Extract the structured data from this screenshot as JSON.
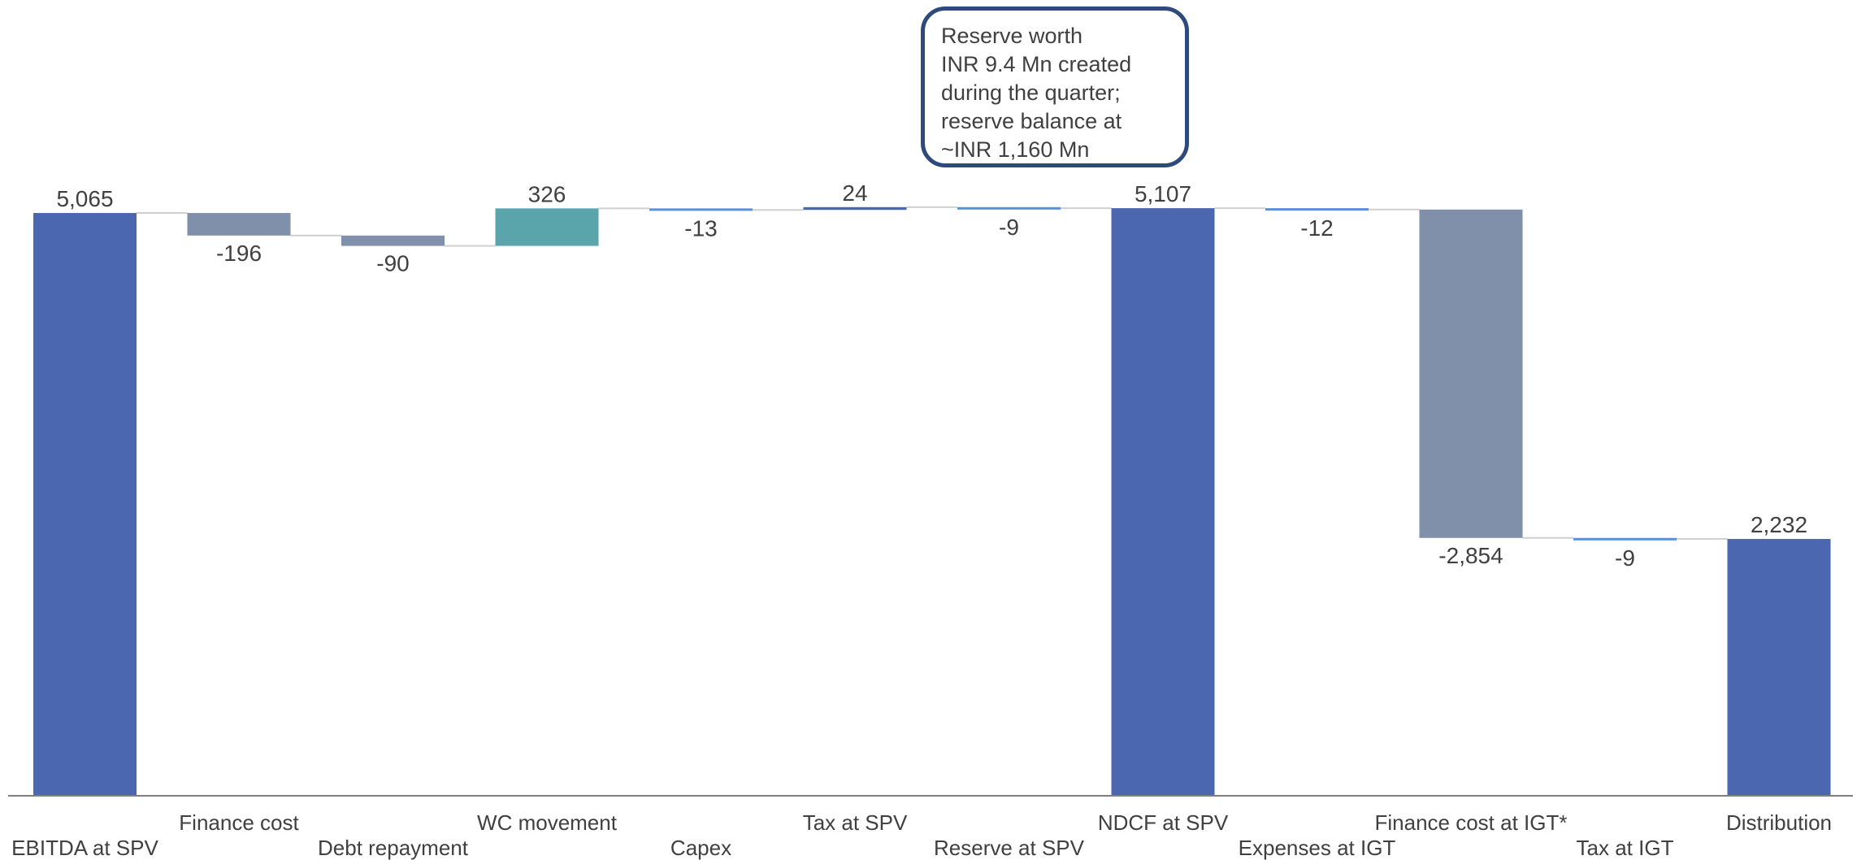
{
  "chart_data": {
    "type": "bar",
    "subtype": "waterfall",
    "title": "",
    "xlabel": "",
    "ylabel": "",
    "ylim": [
      0,
      5800
    ],
    "grid": false,
    "legend": "none",
    "categories": [
      "EBITDA at SPV",
      "Finance cost",
      "Debt repayment",
      "WC movement",
      "Capex",
      "Tax at SPV",
      "Reserve at SPV",
      "NDCF at SPV",
      "Expenses at IGT",
      "Finance cost at IGT*",
      "Tax at IGT",
      "Distribution"
    ],
    "values": [
      5065,
      -196,
      -90,
      326,
      -13,
      24,
      -9,
      5107,
      -12,
      -2854,
      -9,
      2232
    ],
    "value_labels": [
      "5,065",
      "-196",
      "-90",
      "326",
      "-13",
      "24",
      "-9",
      "5,107",
      "-12",
      "-2,854",
      "-9",
      "2,232"
    ],
    "bar_kinds": [
      "total",
      "delta",
      "delta",
      "delta",
      "delta",
      "delta",
      "delta",
      "total",
      "delta",
      "delta",
      "delta",
      "total"
    ],
    "colors": {
      "total": "#4a67b0",
      "negative": "#8090ab",
      "positive": "#5aa4ac",
      "small": "#5b8fd8",
      "connector": "#d0d0d0",
      "axis": "#7f7f7f"
    }
  },
  "callout": {
    "text": "Reserve worth\nINR 9.4 Mn created\nduring the quarter;\nreserve balance at\n~INR 1,160 Mn",
    "border_color": "#2e4a7d"
  }
}
